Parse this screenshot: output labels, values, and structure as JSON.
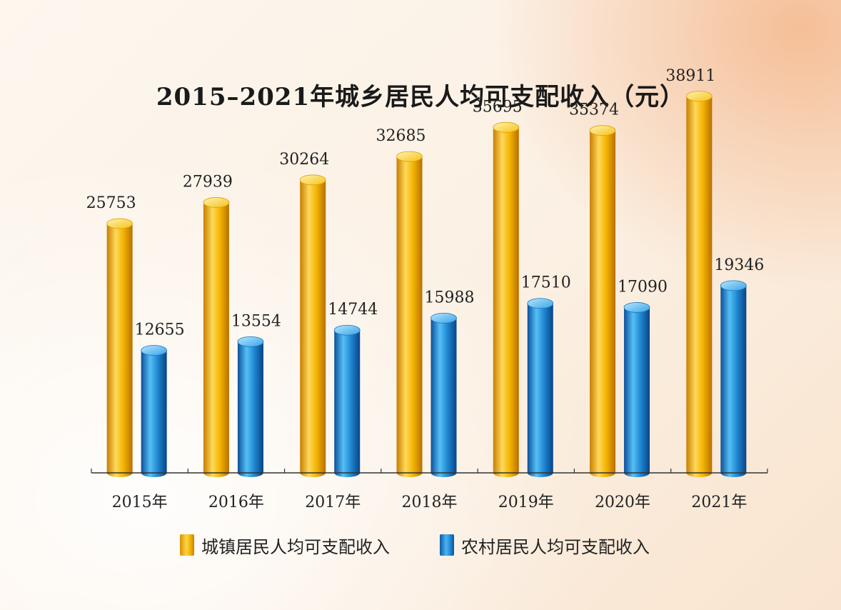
{
  "chart_data": {
    "type": "bar",
    "title": "2015–2021年城乡居民人均可支配收入（元）",
    "categories": [
      "2015年",
      "2016年",
      "2017年",
      "2018年",
      "2019年",
      "2020年",
      "2021年"
    ],
    "series": [
      {
        "name": "城镇居民人均可支配收入",
        "values": [
          25753,
          27939,
          30264,
          32685,
          35695,
          35374,
          38911
        ],
        "color": "#f2b100"
      },
      {
        "name": "农村居民人均可支配收入",
        "values": [
          12655,
          13554,
          14744,
          15988,
          17510,
          17090,
          19346
        ],
        "color": "#1f86d1"
      }
    ],
    "xlabel": "",
    "ylabel": "",
    "ylim": [
      0,
      40000
    ],
    "legend": "bottom"
  }
}
